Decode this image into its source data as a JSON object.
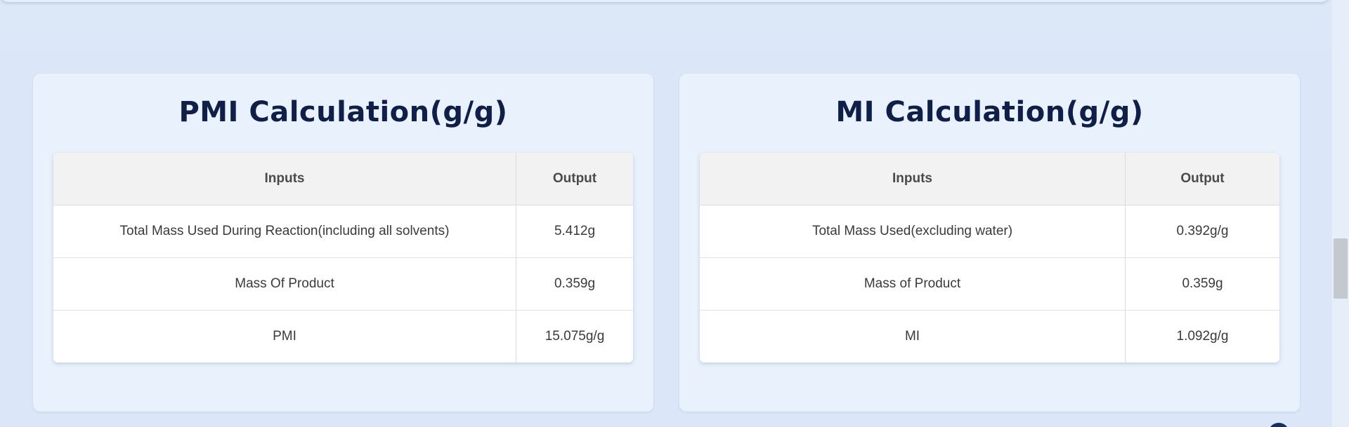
{
  "pmi_card": {
    "title": "PMI Calculation(g/g)",
    "header_inputs": "Inputs",
    "header_output": "Output",
    "rows": [
      {
        "input": "Total Mass Used During Reaction(including all solvents)",
        "output": "5.412g"
      },
      {
        "input": "Mass Of Product",
        "output": "0.359g"
      },
      {
        "input": "PMI",
        "output": "15.075g/g"
      }
    ]
  },
  "mi_card": {
    "title": "MI Calculation(g/g)",
    "header_inputs": "Inputs",
    "header_output": "Output",
    "rows": [
      {
        "input": "Total Mass Used(excluding water)",
        "output": "0.392g/g"
      },
      {
        "input": "Mass of Product",
        "output": "0.359g"
      },
      {
        "input": "MI",
        "output": "1.092g/g"
      }
    ]
  },
  "colors": {
    "background": "#dce8f7",
    "card": "#e9f2fc",
    "title": "#0f1f48"
  }
}
